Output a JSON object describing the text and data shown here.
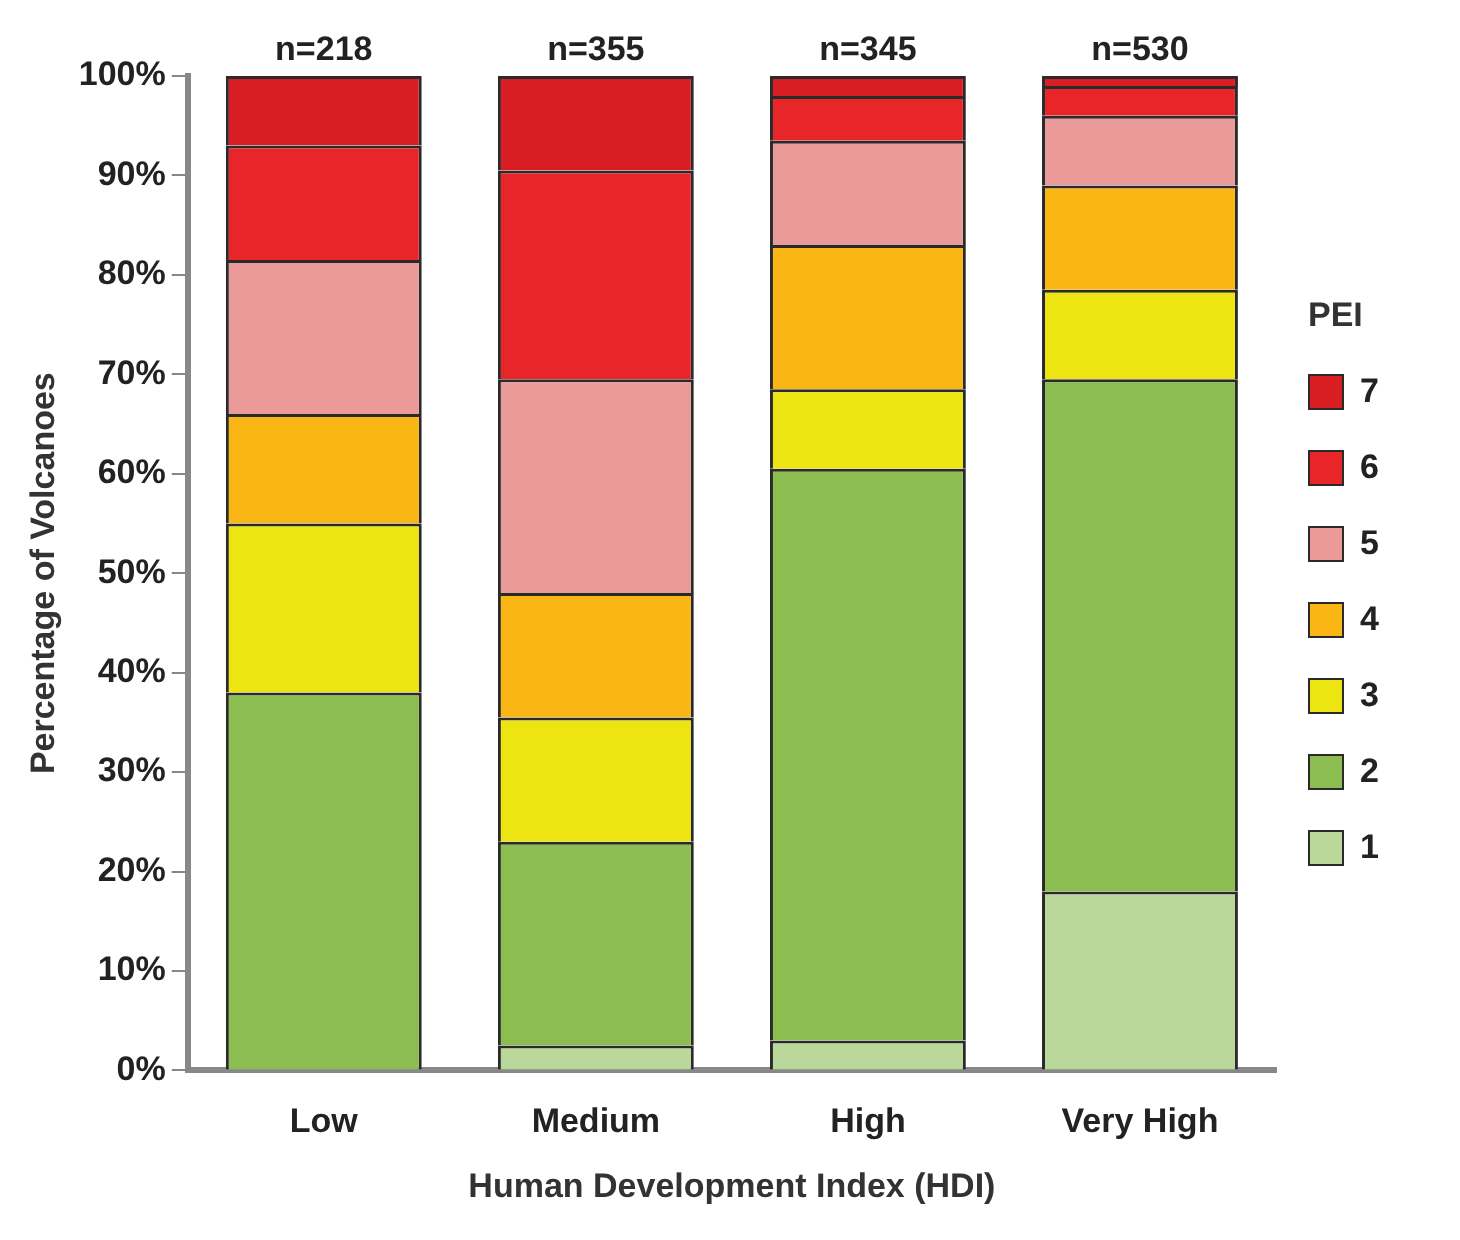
{
  "chart_data": {
    "type": "bar",
    "stacked": true,
    "xlabel": "Human Development Index (HDI)",
    "ylabel": "Percentage of Volcanoes",
    "legend_title": "PEI",
    "legend": "right",
    "grid": false,
    "categories": [
      "Low",
      "Medium",
      "High",
      "Very High"
    ],
    "ylim": [
      0,
      100
    ],
    "yticks": [
      {
        "value": 0,
        "label": "0%"
      },
      {
        "value": 10,
        "label": "10%"
      },
      {
        "value": 20,
        "label": "20%"
      },
      {
        "value": 30,
        "label": "30%"
      },
      {
        "value": 40,
        "label": "40%"
      },
      {
        "value": 50,
        "label": "50%"
      },
      {
        "value": 60,
        "label": "60%"
      },
      {
        "value": 70,
        "label": "70%"
      },
      {
        "value": 80,
        "label": "80%"
      },
      {
        "value": 90,
        "label": "90%"
      },
      {
        "value": 100,
        "label": "100%"
      }
    ],
    "series": [
      {
        "name": "1",
        "color": "#b9d89a",
        "values": [
          0,
          2.5,
          3,
          18
        ]
      },
      {
        "name": "2",
        "color": "#8cbd50",
        "values": [
          38,
          20.5,
          57.5,
          51.5
        ]
      },
      {
        "name": "3",
        "color": "#ece512",
        "values": [
          17,
          12.5,
          8,
          9
        ]
      },
      {
        "name": "4",
        "color": "#f9b614",
        "values": [
          11,
          12.5,
          14.5,
          10.5
        ]
      },
      {
        "name": "5",
        "color": "#ea9a98",
        "values": [
          15.5,
          21.5,
          10.5,
          7
        ]
      },
      {
        "name": "6",
        "color": "#e8262a",
        "values": [
          11.5,
          21,
          4.5,
          3
        ]
      },
      {
        "name": "7",
        "color": "#d81e22",
        "values": [
          7,
          9.5,
          2,
          1
        ]
      }
    ],
    "annotations": [
      {
        "text": "n=218",
        "x": "Low",
        "y": 100
      },
      {
        "text": "n=355",
        "x": "Medium",
        "y": 100
      },
      {
        "text": "n=345",
        "x": "High",
        "y": 100
      },
      {
        "text": "n=530",
        "x": "Very High",
        "y": 100
      }
    ]
  }
}
